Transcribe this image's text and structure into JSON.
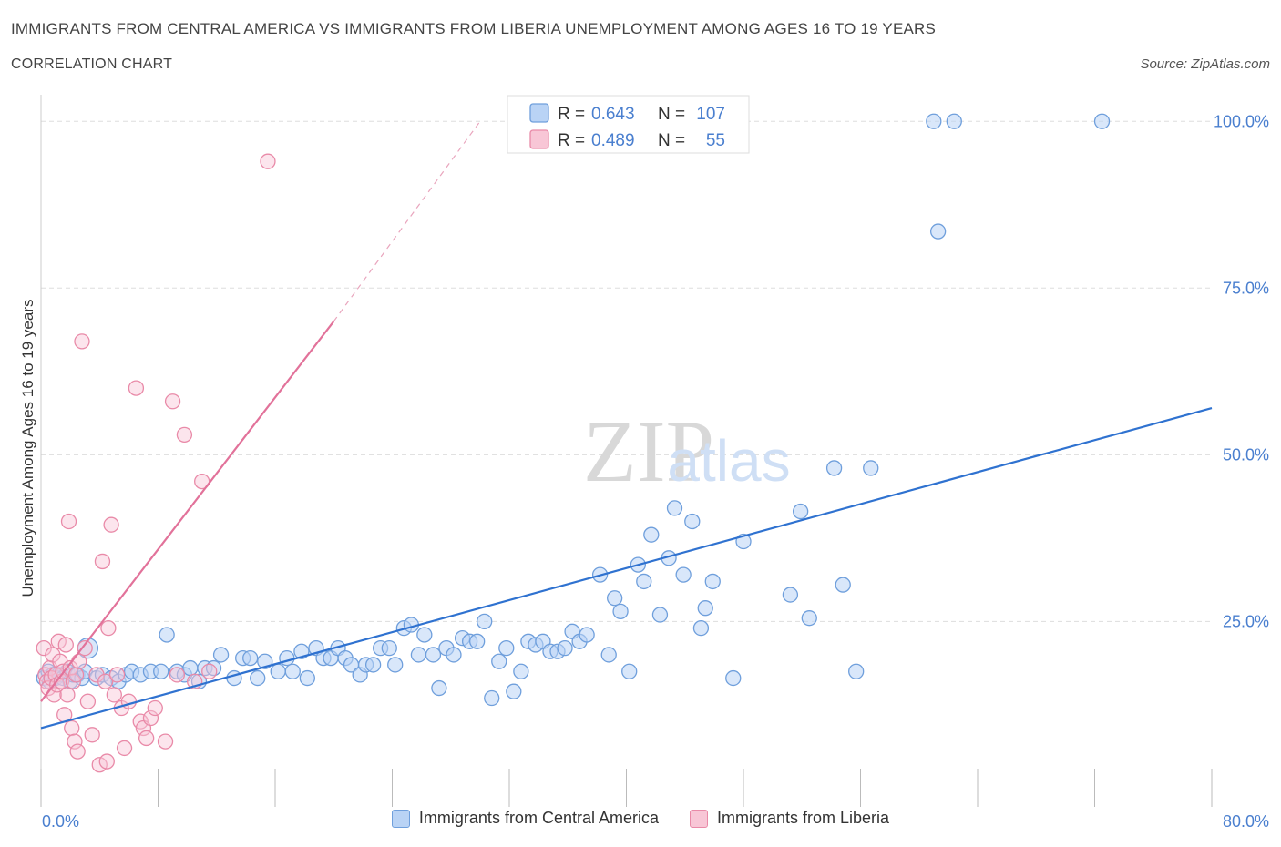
{
  "header": {
    "title": "IMMIGRANTS FROM CENTRAL AMERICA VS IMMIGRANTS FROM LIBERIA UNEMPLOYMENT AMONG AGES 16 TO 19 YEARS",
    "subtitle": "CORRELATION CHART",
    "source": "Source: ZipAtlas.com"
  },
  "watermark": {
    "zip": "ZIP",
    "atlas": "atlas"
  },
  "colors": {
    "blue_fill": "#b9d3f5",
    "blue_stroke": "#6f9fdc",
    "blue_line": "#2f72d0",
    "pink_fill": "#f8c6d6",
    "pink_stroke": "#e98aa8",
    "pink_line": "#e2729a",
    "tick_label": "#4a7fcf",
    "grid": "#dddddd"
  },
  "stats_legend": [
    {
      "r_label": "R =",
      "r_value": "0.643",
      "n_label": "N =",
      "n_value": "107"
    },
    {
      "r_label": "R =",
      "r_value": "0.489",
      "n_label": "N =",
      "n_value": "55"
    }
  ],
  "chart_data": {
    "type": "scatter",
    "title": "",
    "xlabel": "",
    "ylabel": "Unemployment Among Ages 16 to 19 years",
    "xlim": [
      0,
      80
    ],
    "ylim": [
      -2,
      104
    ],
    "x_tick_labels": [
      {
        "value": 0,
        "label": "0.0%"
      },
      {
        "value": 80,
        "label": "80.0%"
      }
    ],
    "y_tick_labels": [
      {
        "value": 25,
        "label": "25.0%"
      },
      {
        "value": 50,
        "label": "50.0%"
      },
      {
        "value": 75,
        "label": "75.0%"
      },
      {
        "value": 100,
        "label": "100.0%"
      }
    ],
    "grid": true,
    "legend_position": "top-center",
    "series": [
      {
        "name": "Immigrants from Central America",
        "color": "#6f9fdc",
        "regression": {
          "x": [
            0,
            80
          ],
          "y": [
            9,
            57
          ]
        },
        "points": [
          [
            0.2,
            16.5
          ],
          [
            0.5,
            17.5
          ],
          [
            0.6,
            16
          ],
          [
            0.8,
            17
          ],
          [
            1.0,
            16.5
          ],
          [
            1.2,
            17
          ],
          [
            1.5,
            16.5
          ],
          [
            1.8,
            17.5
          ],
          [
            2.0,
            16
          ],
          [
            2.2,
            17
          ],
          [
            2.5,
            17
          ],
          [
            2.8,
            16.5
          ],
          [
            3.0,
            17.5
          ],
          [
            3.2,
            21
          ],
          [
            3.8,
            16.5
          ],
          [
            4.2,
            17
          ],
          [
            4.8,
            16.5
          ],
          [
            5.3,
            16
          ],
          [
            5.8,
            17
          ],
          [
            6.2,
            17.5
          ],
          [
            6.8,
            17
          ],
          [
            7.5,
            17.5
          ],
          [
            8.2,
            17.5
          ],
          [
            8.6,
            23
          ],
          [
            9.3,
            17.5
          ],
          [
            9.8,
            17
          ],
          [
            10.2,
            18
          ],
          [
            10.8,
            16
          ],
          [
            11.2,
            18
          ],
          [
            11.8,
            18
          ],
          [
            12.3,
            20
          ],
          [
            13.2,
            16.5
          ],
          [
            13.8,
            19.5
          ],
          [
            14.3,
            19.5
          ],
          [
            14.8,
            16.5
          ],
          [
            15.3,
            19
          ],
          [
            16.2,
            17.5
          ],
          [
            16.8,
            19.5
          ],
          [
            17.2,
            17.5
          ],
          [
            17.8,
            20.5
          ],
          [
            18.2,
            16.5
          ],
          [
            18.8,
            21
          ],
          [
            19.3,
            19.5
          ],
          [
            19.8,
            19.5
          ],
          [
            20.3,
            21
          ],
          [
            20.8,
            19.5
          ],
          [
            21.2,
            18.5
          ],
          [
            21.8,
            17
          ],
          [
            22.2,
            18.5
          ],
          [
            22.7,
            18.5
          ],
          [
            23.2,
            21
          ],
          [
            23.8,
            21
          ],
          [
            24.2,
            18.5
          ],
          [
            24.8,
            24
          ],
          [
            25.3,
            24.5
          ],
          [
            25.8,
            20
          ],
          [
            26.2,
            23
          ],
          [
            26.8,
            20
          ],
          [
            27.2,
            15
          ],
          [
            27.7,
            21
          ],
          [
            28.2,
            20
          ],
          [
            28.8,
            22.5
          ],
          [
            29.3,
            22
          ],
          [
            29.8,
            22
          ],
          [
            30.3,
            25
          ],
          [
            30.8,
            13.5
          ],
          [
            31.3,
            19
          ],
          [
            31.8,
            21
          ],
          [
            32.3,
            14.5
          ],
          [
            32.8,
            17.5
          ],
          [
            33.3,
            22
          ],
          [
            33.8,
            21.5
          ],
          [
            34.3,
            22
          ],
          [
            34.8,
            20.5
          ],
          [
            35.3,
            20.5
          ],
          [
            35.8,
            21
          ],
          [
            36.3,
            23.5
          ],
          [
            36.8,
            22
          ],
          [
            37.3,
            23
          ],
          [
            38.2,
            32
          ],
          [
            38.8,
            20
          ],
          [
            39.2,
            28.5
          ],
          [
            39.6,
            26.5
          ],
          [
            40.2,
            17.5
          ],
          [
            40.8,
            33.5
          ],
          [
            41.2,
            31
          ],
          [
            41.7,
            38
          ],
          [
            42.3,
            26
          ],
          [
            42.9,
            34.5
          ],
          [
            43.3,
            42
          ],
          [
            43.9,
            32
          ],
          [
            44.5,
            40
          ],
          [
            45.1,
            24
          ],
          [
            45.4,
            27
          ],
          [
            45.9,
            31
          ],
          [
            47.3,
            16.5
          ],
          [
            48.0,
            37
          ],
          [
            51.2,
            29
          ],
          [
            51.9,
            41.5
          ],
          [
            52.5,
            25.5
          ],
          [
            54.2,
            48
          ],
          [
            54.8,
            30.5
          ],
          [
            55.7,
            17.5
          ],
          [
            56.7,
            48
          ],
          [
            61.0,
            100
          ],
          [
            61.3,
            83.5
          ],
          [
            62.4,
            100
          ],
          [
            72.5,
            100
          ]
        ]
      },
      {
        "name": "Immigrants from Liberia",
        "color": "#e98aa8",
        "regression": {
          "x": [
            0,
            20
          ],
          "y": [
            13,
            70
          ],
          "extension": {
            "x": [
              20,
              30
            ],
            "y": [
              70,
              100
            ]
          }
        },
        "points": [
          [
            0.2,
            21
          ],
          [
            0.3,
            17
          ],
          [
            0.4,
            16
          ],
          [
            0.5,
            15
          ],
          [
            0.6,
            18
          ],
          [
            0.7,
            16.5
          ],
          [
            0.8,
            20
          ],
          [
            0.9,
            14
          ],
          [
            1.0,
            17
          ],
          [
            1.1,
            15.5
          ],
          [
            1.2,
            22
          ],
          [
            1.3,
            19
          ],
          [
            1.4,
            16
          ],
          [
            1.5,
            17.5
          ],
          [
            1.6,
            11
          ],
          [
            1.7,
            21.5
          ],
          [
            1.8,
            14
          ],
          [
            1.9,
            40
          ],
          [
            2.0,
            18
          ],
          [
            2.1,
            9
          ],
          [
            2.2,
            16
          ],
          [
            2.3,
            7
          ],
          [
            2.4,
            17
          ],
          [
            2.5,
            5.5
          ],
          [
            2.6,
            19
          ],
          [
            2.8,
            67
          ],
          [
            3.0,
            21
          ],
          [
            3.2,
            13
          ],
          [
            3.5,
            8
          ],
          [
            3.8,
            17
          ],
          [
            4.0,
            3.5
          ],
          [
            4.2,
            34
          ],
          [
            4.4,
            16
          ],
          [
            4.5,
            4
          ],
          [
            4.6,
            24
          ],
          [
            4.8,
            39.5
          ],
          [
            5.0,
            14
          ],
          [
            5.2,
            17
          ],
          [
            5.5,
            12
          ],
          [
            5.7,
            6
          ],
          [
            6.0,
            13
          ],
          [
            6.5,
            60
          ],
          [
            6.8,
            10
          ],
          [
            7.0,
            9
          ],
          [
            7.2,
            7.5
          ],
          [
            7.5,
            10.5
          ],
          [
            7.8,
            12
          ],
          [
            8.5,
            7
          ],
          [
            9.0,
            58
          ],
          [
            9.3,
            17
          ],
          [
            9.8,
            53
          ],
          [
            10.5,
            16
          ],
          [
            11.0,
            46
          ],
          [
            11.5,
            17.5
          ],
          [
            15.5,
            94
          ]
        ]
      }
    ]
  },
  "legend": {
    "items": [
      "Immigrants from Central America",
      "Immigrants from Liberia"
    ]
  }
}
